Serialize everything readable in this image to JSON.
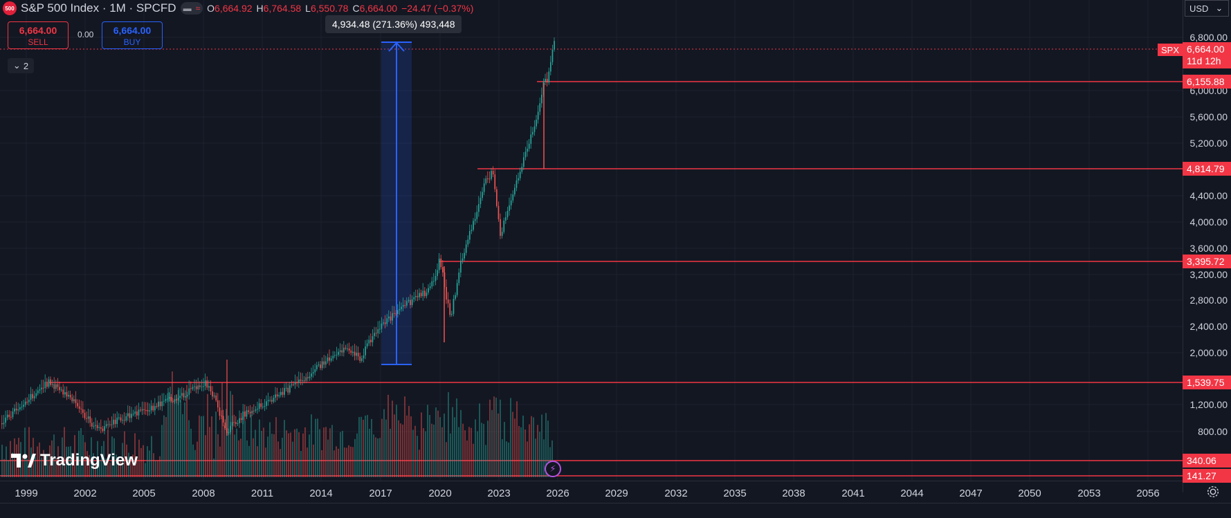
{
  "header": {
    "symbol_badge": "500",
    "title": "S&P 500 Index · 1M · SPCFD",
    "pill_icon_1": "minus-icon",
    "pill_icon_2": "wave-icon",
    "ohlc": {
      "o_label": "O",
      "o_value": "6,664.92",
      "h_label": "H",
      "h_value": "6,764.58",
      "l_label": "L",
      "l_value": "6,550.78",
      "c_label": "C",
      "c_value": "6,664.00",
      "change": "−24.47 (−0.37%)"
    }
  },
  "trade": {
    "sell_price": "6,664.00",
    "sell_label": "SELL",
    "spread": "0.00",
    "buy_price": "6,664.00",
    "buy_label": "BUY"
  },
  "indicators_collapse": {
    "count": "2"
  },
  "measure_tooltip": "4,934.48 (271.36%) 493,448",
  "currency": "USD",
  "price": {
    "tag": "SPX",
    "value": "6,664.00",
    "countdown": "11d 12h"
  },
  "levels": [
    "6,155.88",
    "4,814.79",
    "3,395.72",
    "1,539.75",
    "340.06",
    "141.27"
  ],
  "y_ticks": [
    "6,800.00",
    "6,000.00",
    "5,600.00",
    "5,200.00",
    "4,400.00",
    "4,000.00",
    "3,600.00",
    "3,200.00",
    "2,800.00",
    "2,400.00",
    "2,000.00",
    "1,200.00",
    "800.00"
  ],
  "x_ticks": [
    "1999",
    "2002",
    "2005",
    "2008",
    "2011",
    "2014",
    "2017",
    "2020",
    "2023",
    "2026",
    "2029",
    "2032",
    "2035",
    "2038",
    "2041",
    "2044",
    "2047",
    "2050",
    "2053",
    "2056"
  ],
  "branding": "TradingView",
  "colors": {
    "up": "#26a69a",
    "down": "#ef5350",
    "level": "#f23645",
    "measure": "#2962ff",
    "bg": "#131722"
  }
}
